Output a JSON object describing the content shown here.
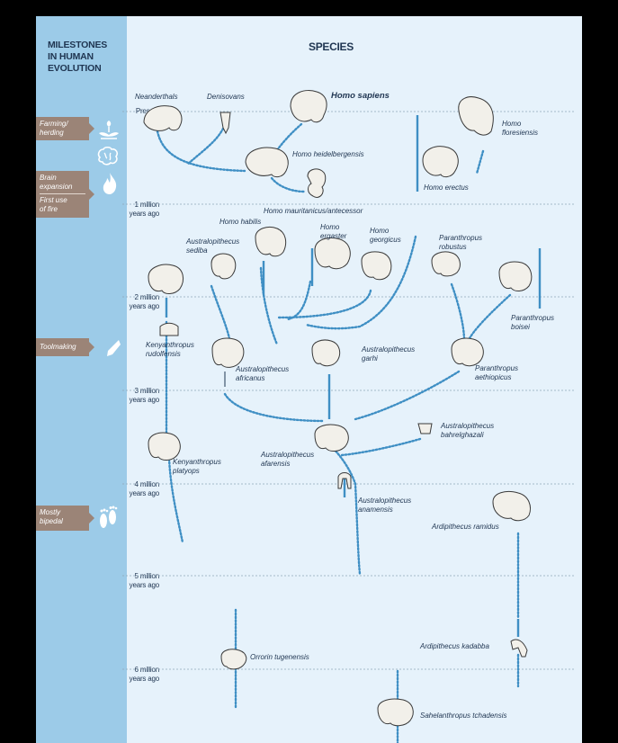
{
  "sidebar": {
    "title": "MILESTONES\nIN HUMAN\nEVOLUTION",
    "milestones": [
      {
        "label": "Farming/\nherding"
      },
      {
        "label": "Brain\nexpansion"
      },
      {
        "label": "First use\nof fire"
      },
      {
        "label": "Toolmaking"
      },
      {
        "label": "Mostly\nbipedal"
      }
    ],
    "icons": [
      "hands-plant-icon",
      "brain-icon",
      "fire-icon",
      "stone-tool-icon",
      "footprints-icon"
    ]
  },
  "header": {
    "title": "SPECIES"
  },
  "timeline": {
    "ticks": [
      {
        "label": "Present"
      },
      {
        "label": "1 million\nyears ago"
      },
      {
        "label": "2 million\nyears ago"
      },
      {
        "label": "3 million\nyears ago"
      },
      {
        "label": "4 million\nyears ago"
      },
      {
        "label": "5 million\nyears ago"
      },
      {
        "label": "6 million\nyears ago"
      }
    ]
  },
  "species": {
    "neanderthals": "Neanderthals",
    "denisovans": "Denisovans",
    "homo_sapiens": "Homo sapiens",
    "homo_floresiensis": "Homo\nfloresiensis",
    "homo_heidelbergensis": "Homo heidelbergensis",
    "homo_erectus": "Homo erectus",
    "homo_mauritanicus": "Homo mauritanicus/antecessor",
    "homo_habilis": "Homo habilis",
    "homo_ergaster": "Homo\nergaster",
    "homo_georgicus": "Homo\ngeorgicus",
    "australopithecus_sediba": "Australopithecus\nsediba",
    "paranthropus_robustus": "Paranthropus\nrobustus",
    "paranthropus_boisei": "Paranthropus\nboisei",
    "kenyanthropus_rudolfensis": "Kenyanthropus\nrudolfensis",
    "australopithecus_garhi": "Australopithecus\ngarhi",
    "australopithecus_africanus": "Australopithecus\nafricanus",
    "paranthropus_aethiopicus": "Paranthropus\naethiopicus",
    "australopithecus_bahrelghazali": "Australopithecus\nbahrelghazali",
    "kenyanthropus_platyops": "Kenyanthropus\nplatyops",
    "australopithecus_afarensis": "Australopithecus\nafarensis",
    "australopithecus_anamensis": "Australopithecus\nanamensis",
    "ardipithecus_ramidus": "Ardipithecus ramidus",
    "orrorin_tugenensis": "Orrorin tugenensis",
    "ardipithecus_kadabba": "Ardipithecus kadabba",
    "sahelanthropus_tchadensis": "Sahelanthropus tchadensis"
  },
  "colors": {
    "sidebar": "#9ccbe8",
    "panel": "#e6f2fb",
    "line": "#3f8fc4",
    "text": "#1f3551",
    "milestone": "#9b8477"
  }
}
